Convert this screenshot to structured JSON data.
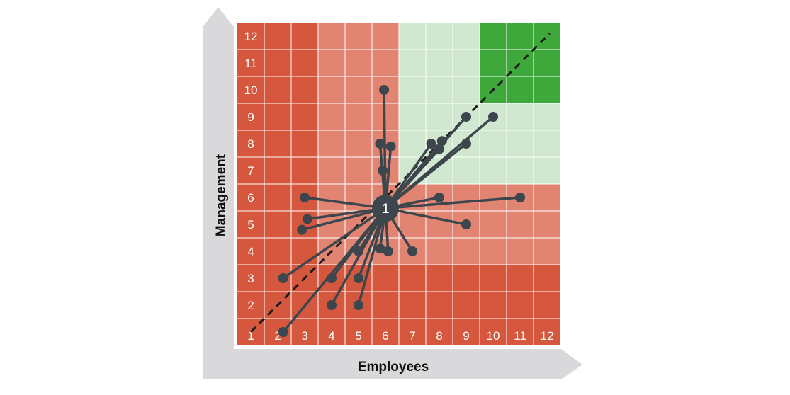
{
  "chart_data": {
    "type": "scatter",
    "title": "",
    "xlabel": "Employees",
    "ylabel": "Management",
    "x_ticks": [
      "1",
      "2",
      "3",
      "4",
      "5",
      "6",
      "7",
      "8",
      "9",
      "10",
      "11",
      "12"
    ],
    "y_ticks": [
      "1",
      "2",
      "3",
      "4",
      "5",
      "6",
      "7",
      "8",
      "9",
      "10",
      "11",
      "12"
    ],
    "xlim": [
      0.5,
      12.5
    ],
    "ylim": [
      0.5,
      12.5
    ],
    "grid": true,
    "center": {
      "x": 6,
      "y": 5.6,
      "label": "1"
    },
    "diagonal": {
      "from": [
        1,
        1
      ],
      "to": [
        12.1,
        12.1
      ],
      "style": "dashed"
    },
    "zones": [
      {
        "name": "dark-red",
        "color": "#d5573d"
      },
      {
        "name": "light-red",
        "color": "#e18572"
      },
      {
        "name": "light-green",
        "color": "#cfe8cf"
      },
      {
        "name": "dark-green",
        "color": "#3fa83a"
      }
    ],
    "points": [
      {
        "x": 2.2,
        "y": 1.0
      },
      {
        "x": 2.2,
        "y": 3.0
      },
      {
        "x": 4.0,
        "y": 2.0
      },
      {
        "x": 4.0,
        "y": 3.0
      },
      {
        "x": 5.0,
        "y": 2.0
      },
      {
        "x": 5.0,
        "y": 3.0
      },
      {
        "x": 5.0,
        "y": 4.0
      },
      {
        "x": 5.8,
        "y": 4.1
      },
      {
        "x": 6.1,
        "y": 4.0
      },
      {
        "x": 7.0,
        "y": 4.0
      },
      {
        "x": 2.9,
        "y": 4.8
      },
      {
        "x": 3.1,
        "y": 5.2
      },
      {
        "x": 3.0,
        "y": 6.0
      },
      {
        "x": 9.0,
        "y": 5.0
      },
      {
        "x": 8.0,
        "y": 6.0
      },
      {
        "x": 11.0,
        "y": 6.0
      },
      {
        "x": 5.9,
        "y": 7.0
      },
      {
        "x": 5.8,
        "y": 8.0
      },
      {
        "x": 6.2,
        "y": 7.9
      },
      {
        "x": 5.95,
        "y": 10.0
      },
      {
        "x": 7.7,
        "y": 8.0
      },
      {
        "x": 8.1,
        "y": 8.1
      },
      {
        "x": 8.0,
        "y": 7.8
      },
      {
        "x": 9.0,
        "y": 8.0
      },
      {
        "x": 9.0,
        "y": 9.0
      },
      {
        "x": 10.0,
        "y": 9.0
      }
    ]
  }
}
